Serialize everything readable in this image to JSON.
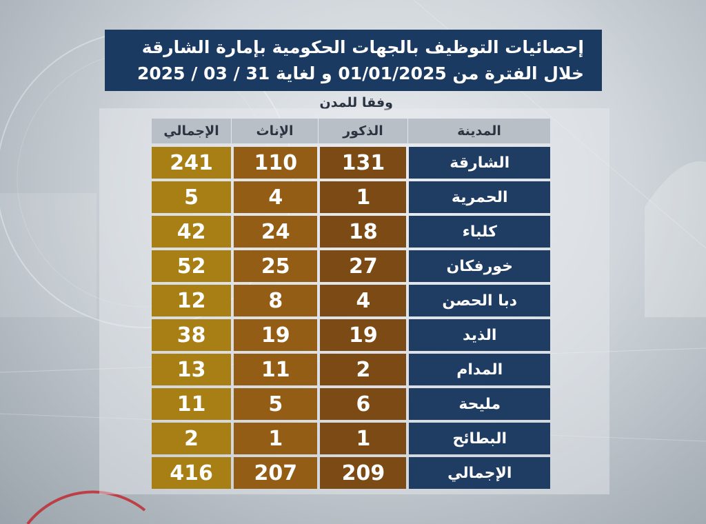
{
  "title": {
    "line1": "إحصائيات التوظيف بالجهات الحكومية بإمارة الشارقة",
    "line2": "خلال الفترة من 01/01/2025 و لغاية 31 / 03 / 2025"
  },
  "subtitle": "وفقا للمدن",
  "table": {
    "headers": {
      "city": "المدينة",
      "male": "الذكور",
      "female": "الإناث",
      "total": "الإجمالي"
    },
    "rows": [
      {
        "city": "الشارقة",
        "male": "131",
        "female": "110",
        "total": "241"
      },
      {
        "city": "الحمرية",
        "male": "1",
        "female": "4",
        "total": "5"
      },
      {
        "city": "كلباء",
        "male": "18",
        "female": "24",
        "total": "42"
      },
      {
        "city": "خورفكان",
        "male": "27",
        "female": "25",
        "total": "52"
      },
      {
        "city": "دبا الحصن",
        "male": "4",
        "female": "8",
        "total": "12"
      },
      {
        "city": "الذيد",
        "male": "19",
        "female": "19",
        "total": "38"
      },
      {
        "city": "المدام",
        "male": "2",
        "female": "11",
        "total": "13"
      },
      {
        "city": "مليحة",
        "male": "6",
        "female": "5",
        "total": "11"
      },
      {
        "city": "البطائح",
        "male": "1",
        "female": "1",
        "total": "2"
      },
      {
        "city": "الإجمالي",
        "male": "209",
        "female": "207",
        "total": "416"
      }
    ]
  },
  "colors": {
    "title_bg": "#1b3a61",
    "city_cell": "#1f3d63",
    "male_cell": "#7c4a14",
    "female_cell": "#935d15",
    "total_cell": "#a87f14",
    "header_bg": "#b9bfc6"
  }
}
